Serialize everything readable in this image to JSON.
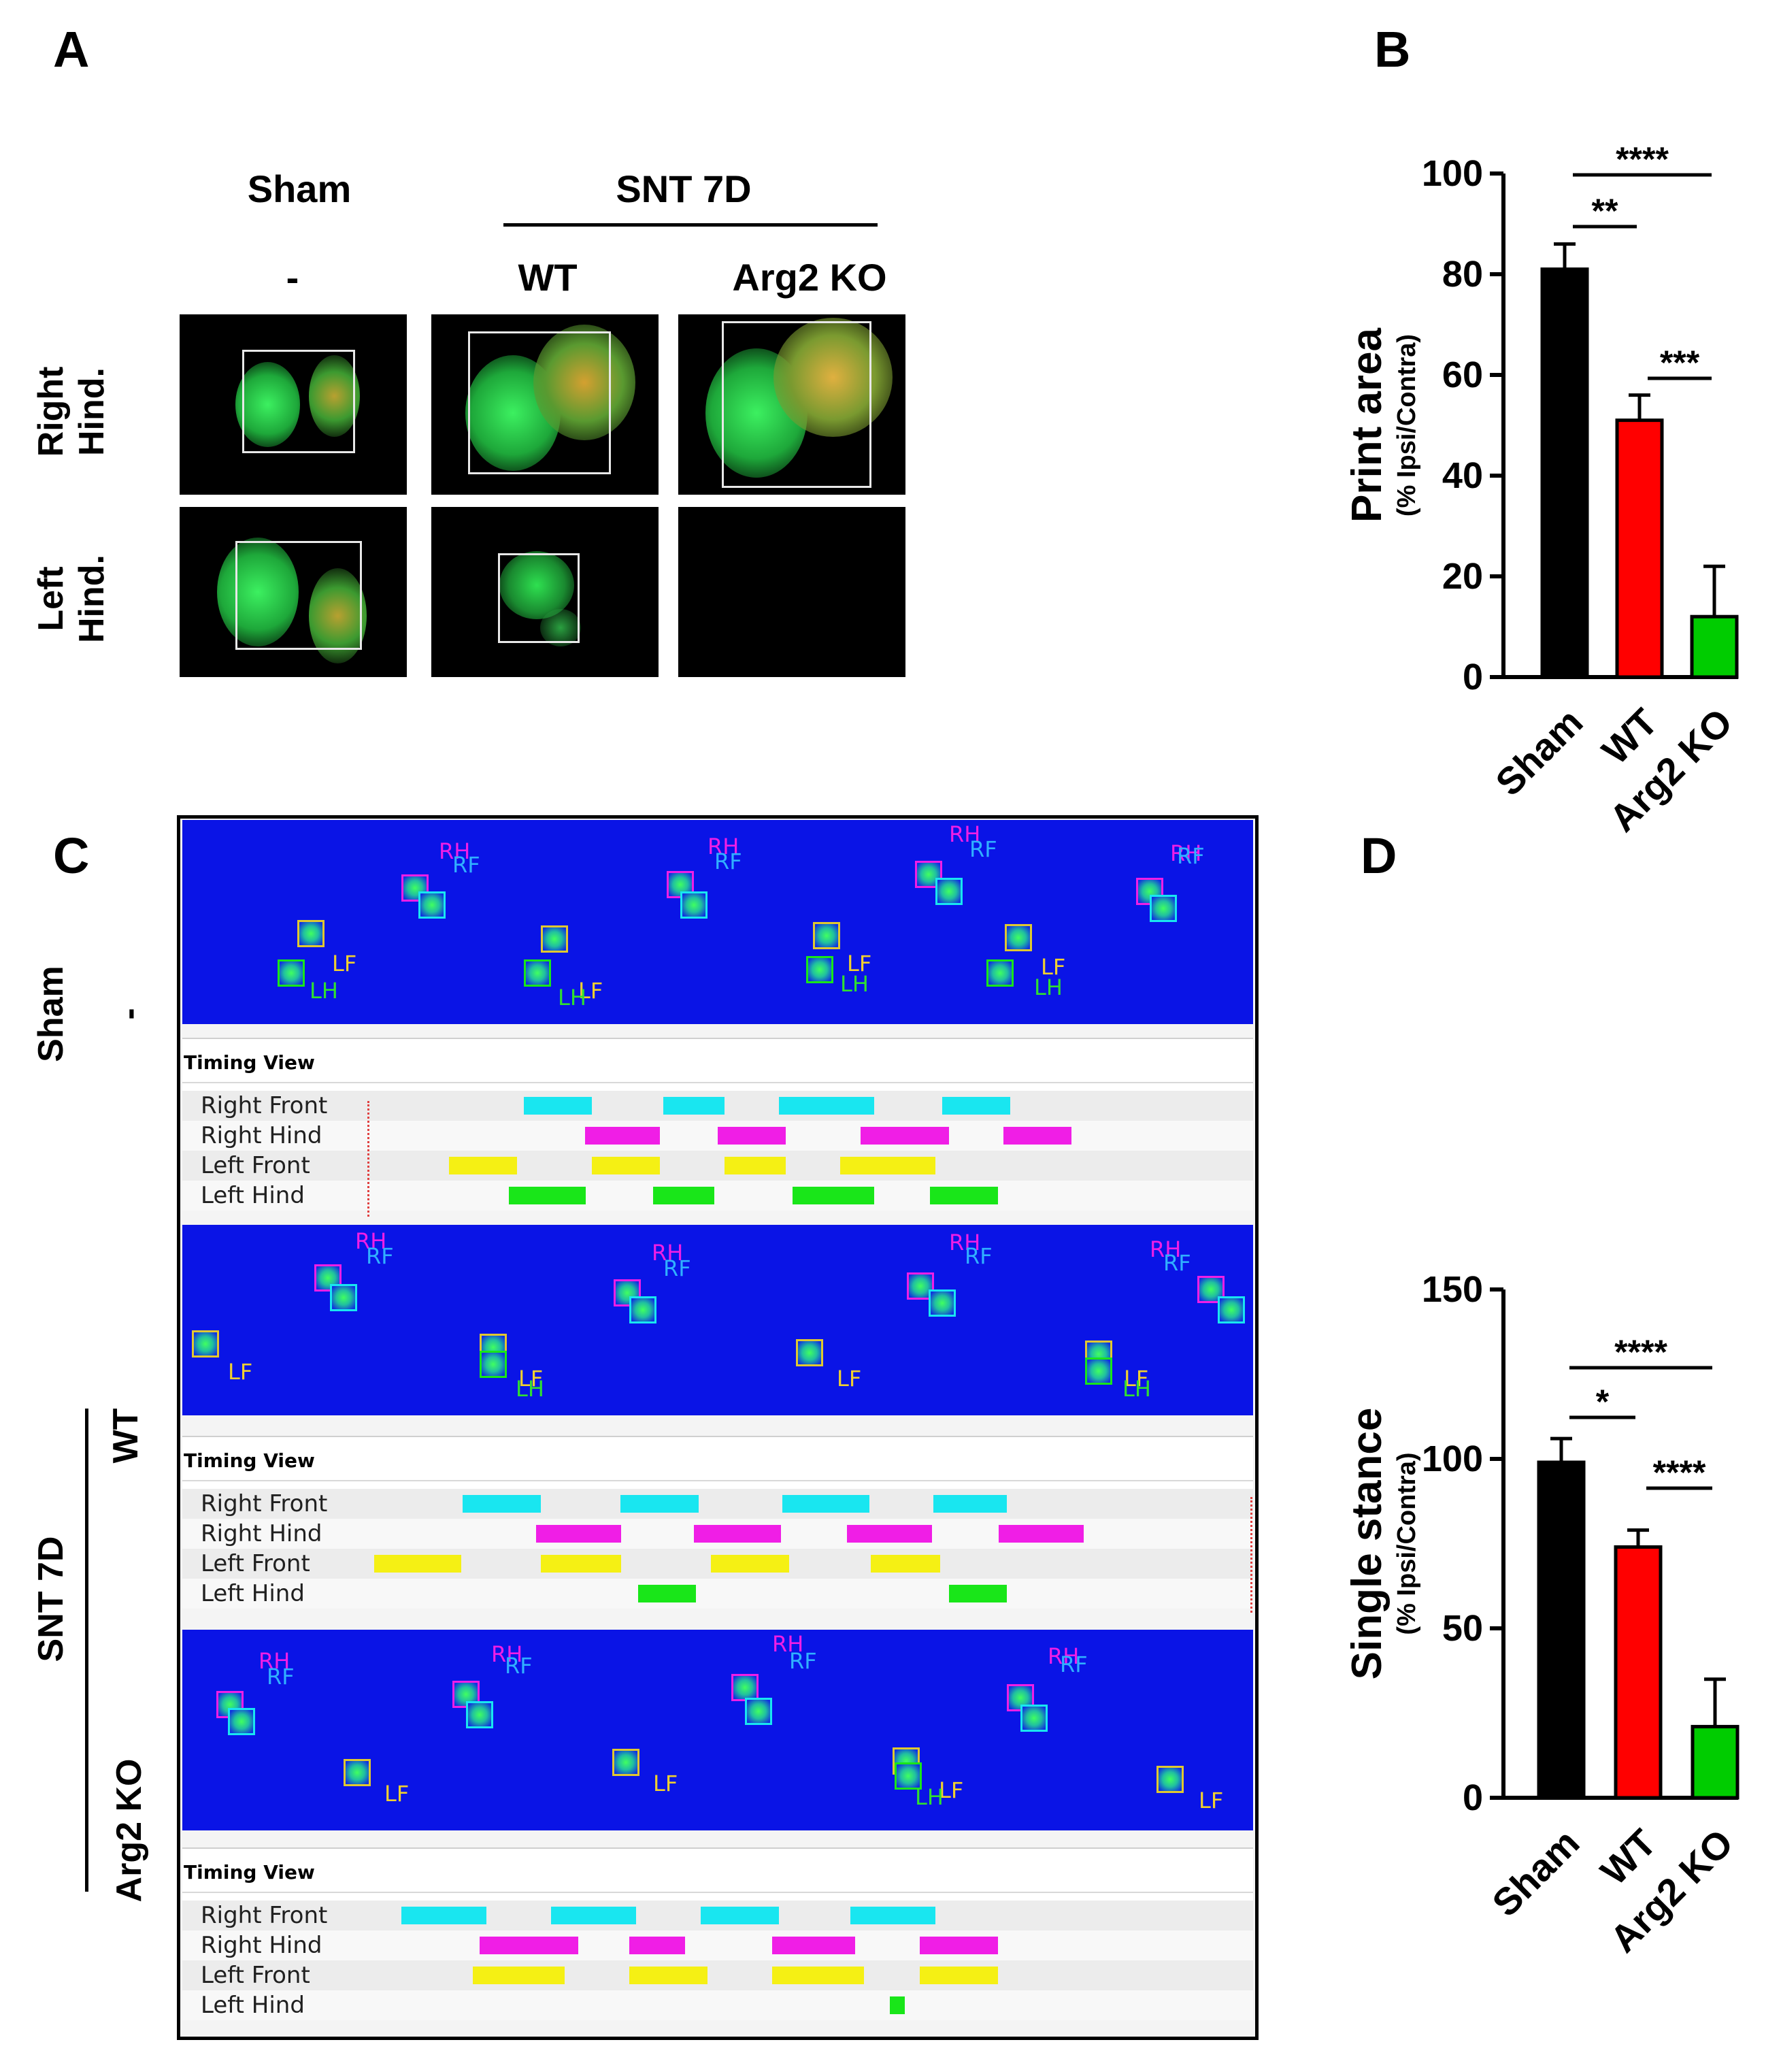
{
  "panels": {
    "a": "A",
    "b": "B",
    "c": "C",
    "d": "D"
  },
  "panel_a": {
    "col_sham": "Sham",
    "col_group": "SNT 7D",
    "col_dash": "-",
    "col_wt": "WT",
    "col_ko": "Arg2 KO",
    "row_right": "Right\nHind.",
    "row_left": "Left\nHind."
  },
  "panel_c": {
    "sham_label": "Sham",
    "sham_sub": "-",
    "group_label": "SNT 7D",
    "wt_label": "WT",
    "ko_label": "Arg2 KO",
    "timing_title": "Timing View",
    "rows": [
      "Right Front",
      "Right Hind",
      "Left Front",
      "Left Hind"
    ],
    "paw_labels": {
      "rh": "RH",
      "rf": "RF",
      "lf": "LF",
      "lh": "LH"
    },
    "colors": {
      "rf": "#19e6f0",
      "rh": "#f01ee6",
      "lf": "#f5f014",
      "lh": "#19e619",
      "background": "#0a14e6"
    }
  },
  "chart_data": [
    {
      "type": "bar",
      "panel": "B",
      "categories": [
        "Sham",
        "WT",
        "Arg2 KO"
      ],
      "values": [
        81,
        51,
        12
      ],
      "errors": [
        5,
        5,
        10
      ],
      "colors": [
        "#000000",
        "#ff0000",
        "#00cc00"
      ],
      "title": "",
      "ylabel": "Print area",
      "ylabel_sub": "(% Ipsi/Contra)",
      "ylim": [
        0,
        100
      ],
      "yticks": [
        0,
        20,
        40,
        60,
        80,
        100
      ],
      "significance": [
        {
          "from": "Sham",
          "to": "Arg2 KO",
          "label": "****"
        },
        {
          "from": "Sham",
          "to": "WT",
          "label": "**"
        },
        {
          "from": "WT",
          "to": "Arg2 KO",
          "label": "***"
        }
      ]
    },
    {
      "type": "bar",
      "panel": "D",
      "categories": [
        "Sham",
        "WT",
        "Arg2 KO"
      ],
      "values": [
        99,
        74,
        21
      ],
      "errors": [
        7,
        5,
        14
      ],
      "colors": [
        "#000000",
        "#ff0000",
        "#00cc00"
      ],
      "title": "",
      "ylabel": "Single stance",
      "ylabel_sub": "(% Ipsi/Contra)",
      "ylim": [
        0,
        150
      ],
      "yticks": [
        0,
        50,
        100,
        150
      ],
      "significance": [
        {
          "from": "Sham",
          "to": "Arg2 KO",
          "label": "****"
        },
        {
          "from": "Sham",
          "to": "WT",
          "label": "*"
        },
        {
          "from": "WT",
          "to": "Arg2 KO",
          "label": "****"
        }
      ]
    }
  ]
}
